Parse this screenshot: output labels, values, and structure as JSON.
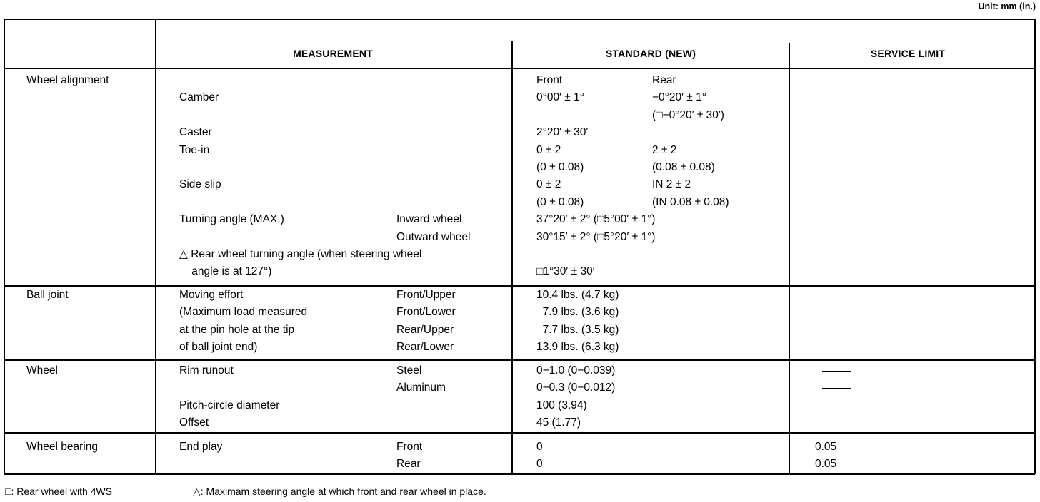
{
  "unit_label": "Unit: mm (in.)",
  "headers": {
    "measurement": "MEASUREMENT",
    "standard": "STANDARD (NEW)",
    "service_limit": "SERVICE LIMIT"
  },
  "sections": [
    {
      "category": "Wheel alignment",
      "lines": [
        {
          "front": "Front",
          "rear": "Rear"
        },
        {
          "meas": "Camber",
          "front": "0°00′ ± 1°",
          "rear": "−0°20′ ± 1°"
        },
        {
          "rear": "(□−0°20′ ± 30′)"
        },
        {
          "meas": "Caster",
          "front": "2°20′ ± 30′"
        },
        {
          "meas": "Toe-in",
          "front": "0 ± 2",
          "rear": "2 ± 2"
        },
        {
          "front": "(0 ± 0.08)",
          "rear": "(0.08 ± 0.08)"
        },
        {
          "meas": "Side slip",
          "front": "0 ± 2",
          "rear": "IN 2 ± 2"
        },
        {
          "front": "(0 ± 0.08)",
          "rear": "(IN 0.08 ± 0.08)"
        },
        {
          "meas": "Turning angle (MAX.)",
          "sub": "Inward wheel",
          "front": "37°20′ ± 2° (□5°00′ ± 1°)"
        },
        {
          "sub": "Outward wheel",
          "front": "30°15′ ± 2° (□5°20′ ± 1°)"
        },
        {
          "meas": "△ Rear wheel turning angle (when steering wheel"
        },
        {
          "meas": "    angle is at 127°)",
          "front": "□1°30′ ± 30′"
        }
      ]
    },
    {
      "category": "Ball joint",
      "lines": [
        {
          "meas": "Moving effort",
          "sub": "Front/Upper",
          "front": "10.4 lbs. (4.7 kg)"
        },
        {
          "meas": "(Maximum load measured",
          "sub": "Front/Lower",
          "front": "  7.9 lbs. (3.6 kg)"
        },
        {
          "meas": "at the pin hole at the tip",
          "sub": "Rear/Upper",
          "front": "  7.7 lbs. (3.5 kg)"
        },
        {
          "meas": "of ball joint end)",
          "sub": "Rear/Lower",
          "front": "13.9 lbs. (6.3 kg)"
        }
      ]
    },
    {
      "category": "Wheel",
      "lines": [
        {
          "meas": "Rim runout",
          "sub": "Steel",
          "front": "0−1.0 (0−0.039)",
          "limit_dash": true
        },
        {
          "sub": "Aluminum",
          "front": "0−0.3 (0−0.012)",
          "limit_dash": true
        },
        {
          "meas": "Pitch-circle diameter",
          "front": "100 (3.94)"
        },
        {
          "meas": "Offset",
          "front": "45 (1.77)"
        }
      ]
    },
    {
      "category": "Wheel bearing",
      "lines": [
        {
          "meas": "End play",
          "sub": "Front",
          "front": "0",
          "limit": "0.05"
        },
        {
          "sub": "Rear",
          "front": "0",
          "limit": "0.05"
        }
      ]
    }
  ],
  "footnotes": {
    "square": "□: Rear wheel with 4WS",
    "triangle": "△: Maximam steering angle at which front and rear wheel in place."
  }
}
